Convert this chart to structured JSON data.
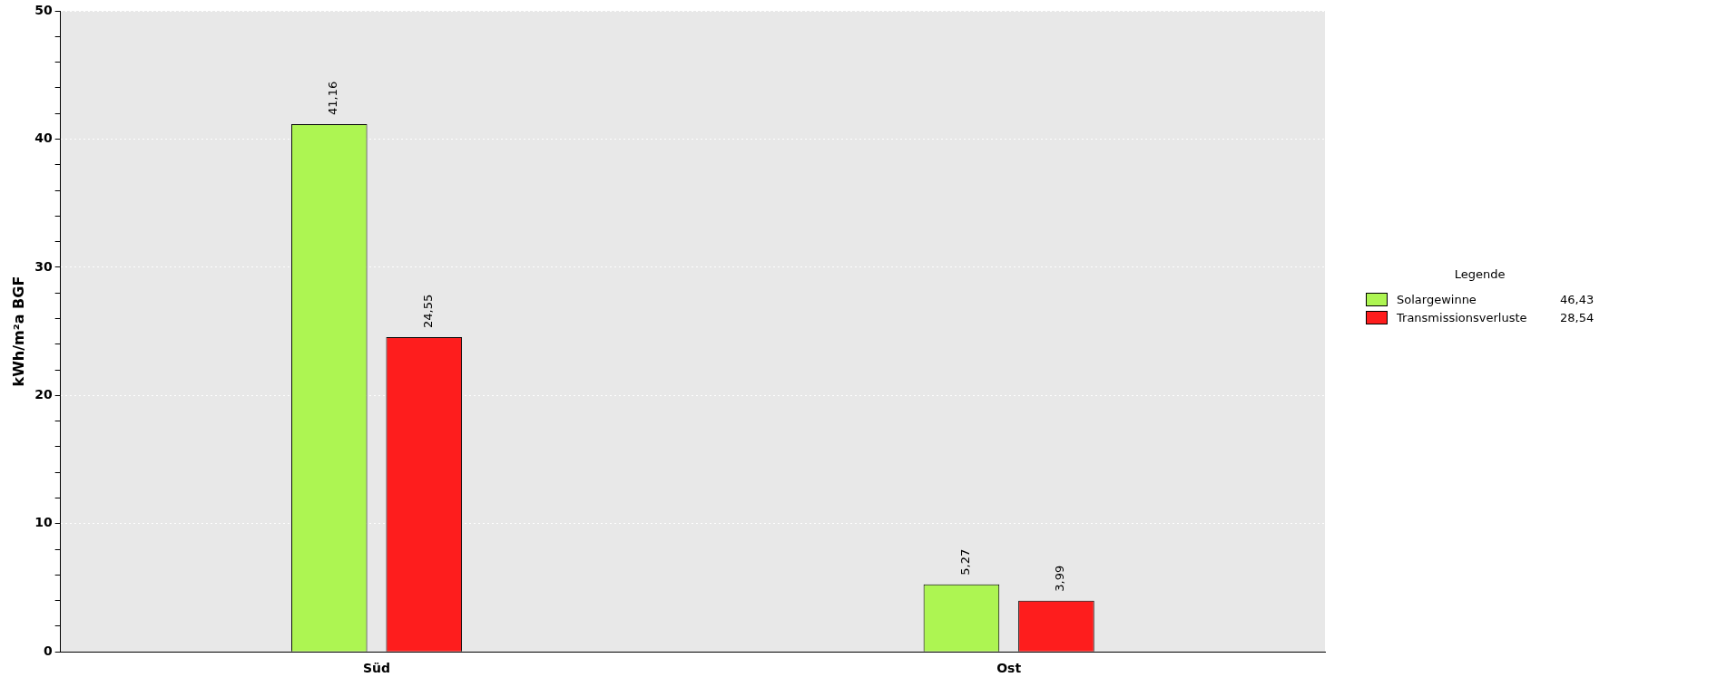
{
  "chart_data": {
    "type": "bar",
    "ylabel": "kWh/m²a BGF",
    "legend_title": "Legende",
    "categories": [
      "Süd",
      "Ost"
    ],
    "series": [
      {
        "name": "Solargewinne",
        "color": "#adf552",
        "values": [
          41.16,
          5.27
        ],
        "value_labels": [
          "41,16",
          "5,27"
        ]
      },
      {
        "name": "Transmissionsverluste",
        "color": "#fe1d1d",
        "values": [
          24.55,
          3.99
        ],
        "value_labels": [
          "24,55",
          "3,99"
        ]
      }
    ],
    "annotations": [
      "46,43",
      "28,54"
    ],
    "ylim": [
      0,
      50
    ],
    "yticks": [
      0,
      {
        "value": 2,
        "label": null
      },
      {
        "value": 4,
        "label": null
      },
      {
        "value": 6,
        "label": null
      },
      {
        "value": 8,
        "label": null
      },
      10,
      {
        "value": 12,
        "label": null
      },
      {
        "value": 14,
        "label": null
      },
      {
        "value": 16,
        "label": null
      },
      {
        "value": 18,
        "label": null
      },
      20,
      {
        "value": 22,
        "label": null
      },
      {
        "value": 24,
        "label": null
      },
      {
        "value": 26,
        "label": null
      },
      {
        "value": 28,
        "label": null
      },
      30,
      {
        "value": 32,
        "label": null
      },
      {
        "value": 34,
        "label": null
      },
      {
        "value": 36,
        "label": null
      },
      {
        "value": 38,
        "label": null
      },
      40,
      {
        "value": 42,
        "label": null
      },
      {
        "value": 44,
        "label": null
      },
      {
        "value": 46,
        "label": null
      },
      {
        "value": 48,
        "label": null
      },
      50
    ],
    "grid": "y",
    "legend": "right"
  }
}
